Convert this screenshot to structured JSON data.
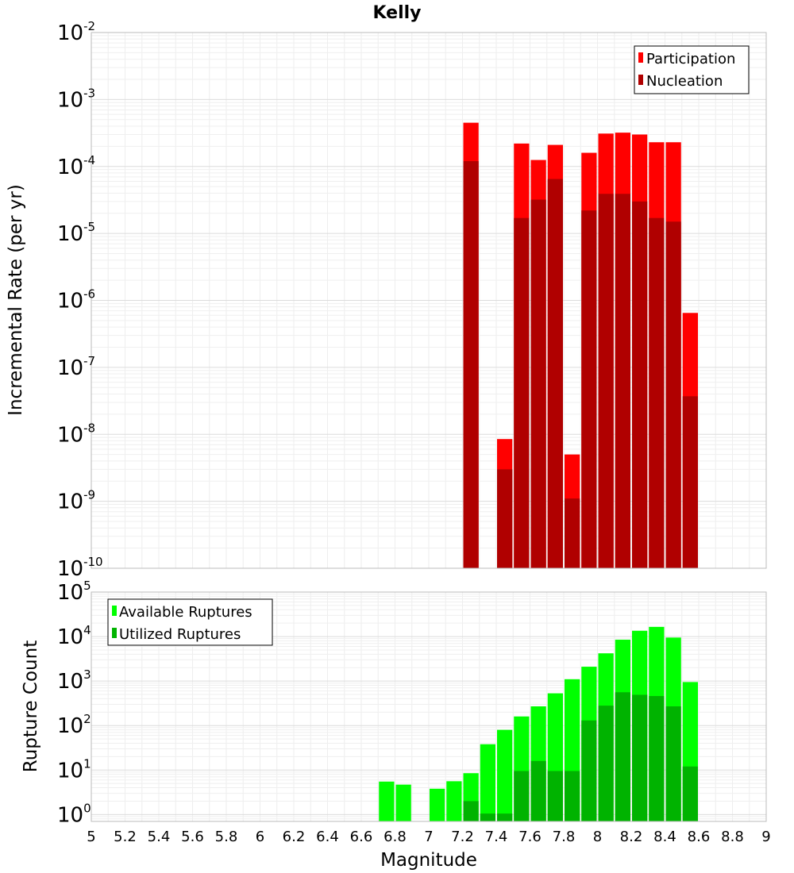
{
  "chart_data": [
    {
      "type": "bar",
      "title": "Kelly",
      "xlabel": "",
      "ylabel": "Incremental Rate (per yr)",
      "xlim": [
        5,
        9
      ],
      "ylim": [
        1e-10,
        0.01
      ],
      "yscale": "log",
      "yticks": [
        {
          "base": "10",
          "exp": "-2"
        },
        {
          "base": "10",
          "exp": "-3"
        },
        {
          "base": "10",
          "exp": "-4"
        },
        {
          "base": "10",
          "exp": "-5"
        },
        {
          "base": "10",
          "exp": "-6"
        },
        {
          "base": "10",
          "exp": "-7"
        },
        {
          "base": "10",
          "exp": "-8"
        },
        {
          "base": "10",
          "exp": "-9"
        },
        {
          "base": "10",
          "exp": "-10"
        }
      ],
      "grid": true,
      "legend_position": "top-right",
      "x": [
        7.25,
        7.35,
        7.45,
        7.55,
        7.65,
        7.75,
        7.85,
        7.95,
        8.05,
        8.15,
        8.25,
        8.35,
        8.45,
        8.55
      ],
      "series": [
        {
          "name": "Participation",
          "color": "#ff0000",
          "values": [
            0.00045,
            null,
            8.5e-09,
            0.00022,
            0.000125,
            0.00021,
            5e-09,
            0.00016,
            0.00031,
            0.00032,
            0.0003,
            0.00023,
            0.00023,
            6.5e-07
          ]
        },
        {
          "name": "Nucleation",
          "color": "#b00000",
          "values": [
            0.00012,
            null,
            3e-09,
            1.7e-05,
            3.2e-05,
            6.5e-05,
            1.1e-09,
            2.2e-05,
            3.9e-05,
            3.9e-05,
            3e-05,
            1.7e-05,
            1.5e-05,
            3.7e-08
          ]
        }
      ]
    },
    {
      "type": "bar",
      "title": "",
      "xlabel": "Magnitude",
      "ylabel": "Rupture Count",
      "xlim": [
        5,
        9
      ],
      "ylim": [
        0.7,
        100000
      ],
      "yscale": "log",
      "yticks": [
        {
          "base": "10",
          "exp": "5"
        },
        {
          "base": "10",
          "exp": "4"
        },
        {
          "base": "10",
          "exp": "3"
        },
        {
          "base": "10",
          "exp": "2"
        },
        {
          "base": "10",
          "exp": "1"
        },
        {
          "base": "10",
          "exp": "0"
        }
      ],
      "xticks": [
        "5",
        "5.2",
        "5.4",
        "5.6",
        "5.8",
        "6",
        "6.2",
        "6.4",
        "6.6",
        "6.8",
        "7",
        "7.2",
        "7.4",
        "7.6",
        "7.8",
        "8",
        "8.2",
        "8.4",
        "8.6",
        "8.8",
        "9"
      ],
      "grid": true,
      "legend_position": "top-left",
      "x": [
        6.75,
        6.85,
        6.95,
        7.05,
        7.15,
        7.25,
        7.35,
        7.45,
        7.55,
        7.65,
        7.75,
        7.85,
        7.95,
        8.05,
        8.15,
        8.25,
        8.35,
        8.45,
        8.55
      ],
      "series": [
        {
          "name": "Available Ruptures",
          "color": "#00ff00",
          "values": [
            5.5,
            4.7,
            null,
            3.8,
            5.6,
            8.5,
            38,
            80,
            160,
            270,
            530,
            1100,
            2100,
            4200,
            8500,
            13500,
            16500,
            9500,
            950
          ]
        },
        {
          "name": "Utilized Ruptures",
          "color": "#00b300",
          "values": [
            null,
            null,
            null,
            null,
            null,
            2,
            1.05,
            1.05,
            9.5,
            16,
            9.5,
            9.5,
            130,
            280,
            560,
            490,
            460,
            270,
            12
          ]
        }
      ]
    }
  ]
}
